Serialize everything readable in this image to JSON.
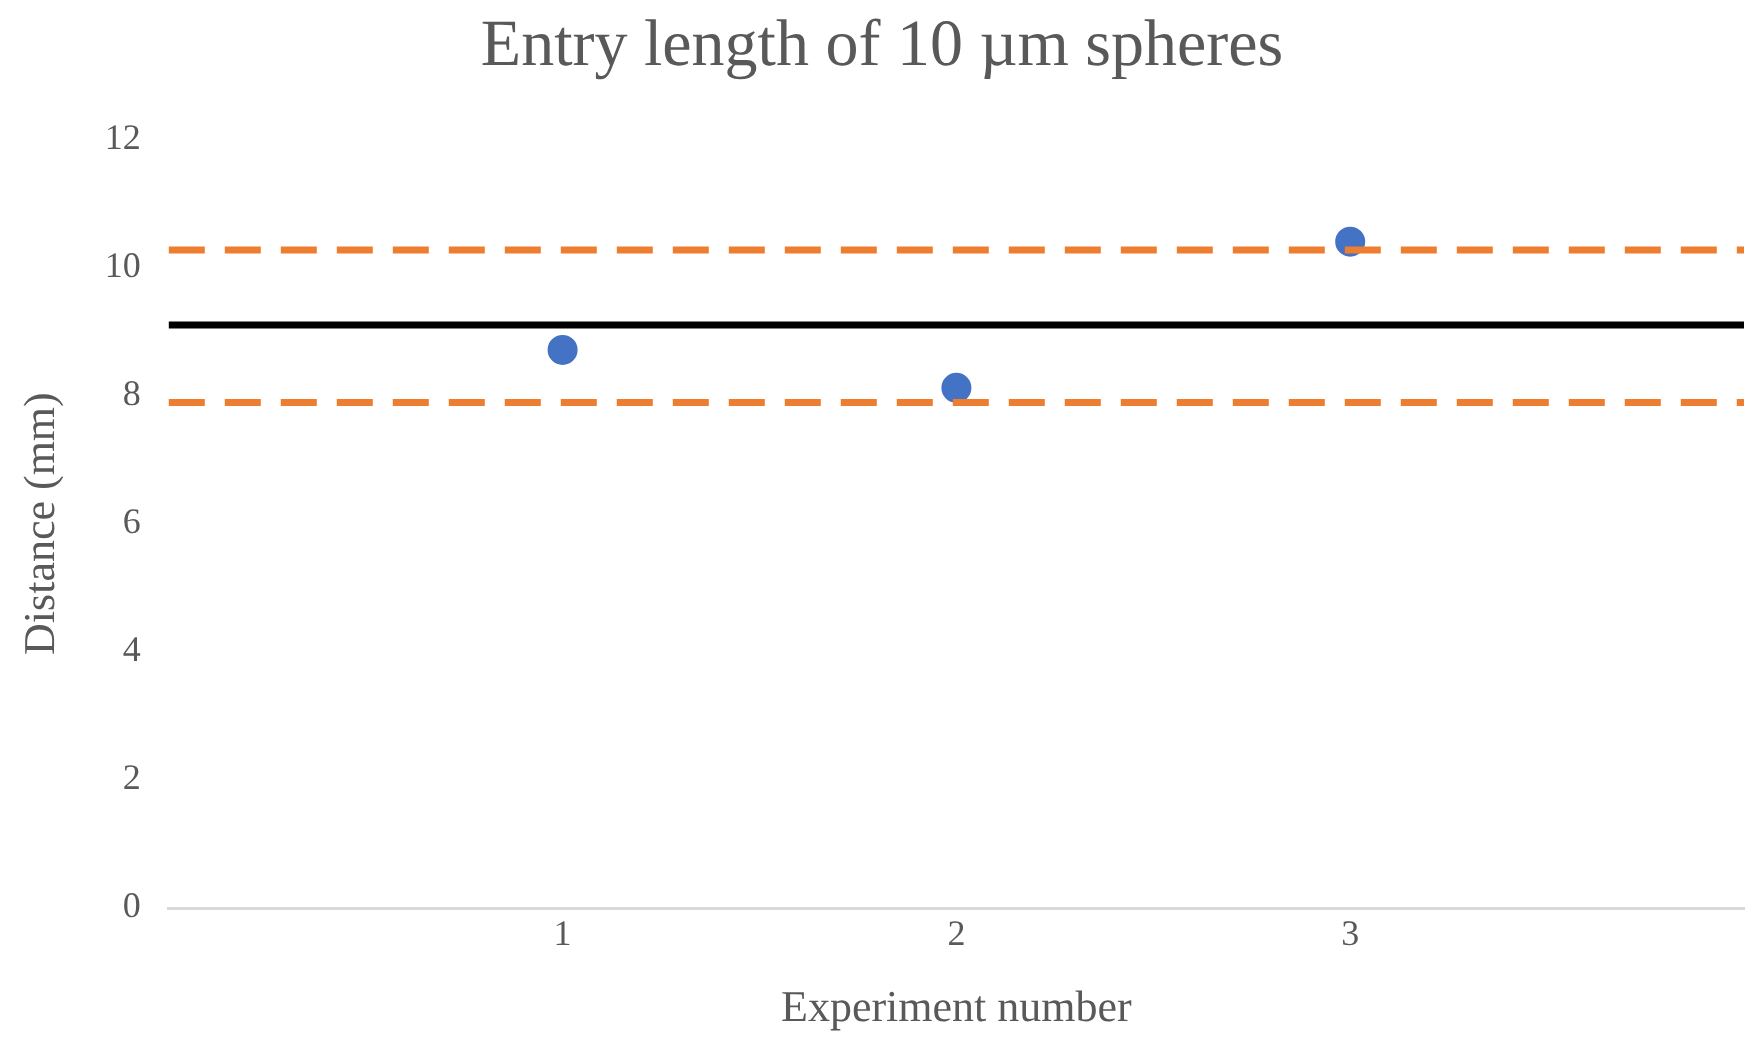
{
  "chart_data": {
    "type": "scatter",
    "title": "Entry length of 10 µm spheres",
    "xlabel": "Experiment number",
    "ylabel": "Distance (mm)",
    "x": [
      1,
      2,
      3
    ],
    "series": [
      {
        "color": "#4472c4",
        "values": [
          8.71,
          8.12,
          10.4
        ]
      }
    ],
    "xlim": [
      0,
      4
    ],
    "xticks": [
      1,
      2,
      3
    ],
    "ylim": [
      0,
      12
    ],
    "yticks": [
      0,
      2,
      4,
      6,
      8,
      10,
      12
    ],
    "ref_lines": [
      {
        "axis": "y",
        "value": 9.1,
        "color": "#000000",
        "line_style": "solid"
      },
      {
        "axis": "y",
        "value": 10.27,
        "color": "#ed7d31",
        "line_style": "dashed"
      },
      {
        "axis": "y",
        "value": 7.89,
        "color": "#ed7d31",
        "line_style": "dashed"
      }
    ],
    "grid": false,
    "legend": false,
    "marker": "circle"
  }
}
